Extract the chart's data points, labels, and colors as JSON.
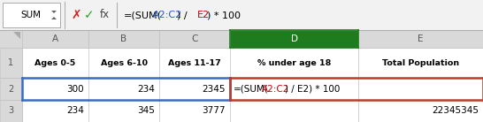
{
  "formula_bar_text": [
    {
      "text": "=(SUM(",
      "color": "#000000"
    },
    {
      "text": "A2:C2",
      "color": "#2255cc"
    },
    {
      "text": ") / ",
      "color": "#000000"
    },
    {
      "text": "E2",
      "color": "#cc0000"
    },
    {
      "text": ") * 100",
      "color": "#000000"
    }
  ],
  "cell_formula_parts": [
    {
      "text": "=(SUM(",
      "color": "#000000"
    },
    {
      "text": "A2:C2",
      "color": "#cc0000"
    },
    {
      "text": ") / E2) * 100",
      "color": "#000000"
    }
  ],
  "col_letters": [
    "A",
    "B",
    "C",
    "D",
    "E"
  ],
  "row_numbers": [
    "1",
    "2",
    "3"
  ],
  "headers": [
    "Ages 0-5",
    "Ages 6-10",
    "Ages 11-17",
    "% under age 18",
    "Total Population"
  ],
  "row2_nums": [
    "300",
    "234",
    "2345"
  ],
  "row3": [
    "234",
    "345",
    "3777",
    "",
    "22345345"
  ],
  "namebox": "SUM",
  "col_D_green": "#1e7b1e",
  "col_header_bg": "#d9d9d9",
  "row_header_bg": "#d9d9d9",
  "cell_bg": "#ffffff",
  "formula_bar_bg": "#f2f2f2",
  "grid_color": "#c0c0c0",
  "blue_border": "#3b6bc7",
  "red_border": "#c0392b"
}
